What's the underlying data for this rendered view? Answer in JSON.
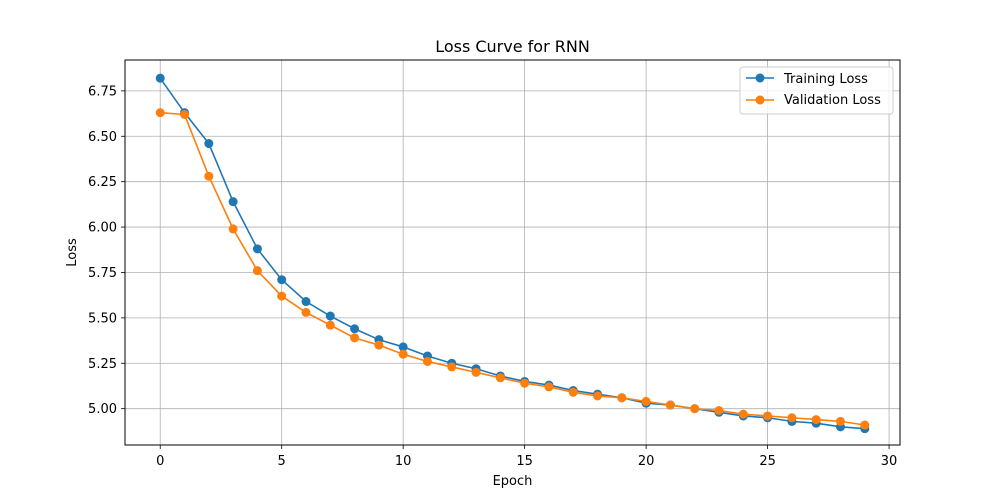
{
  "chart_data": {
    "type": "line",
    "title": "Loss Curve for RNN",
    "xlabel": "Epoch",
    "ylabel": "Loss",
    "xlim": [
      -1.45,
      30.45
    ],
    "ylim": [
      4.8,
      6.92
    ],
    "xticks": [
      0,
      5,
      10,
      15,
      20,
      25,
      30
    ],
    "yticks": [
      5.0,
      5.25,
      5.5,
      5.75,
      6.0,
      6.25,
      6.5,
      6.75
    ],
    "xtick_labels": [
      "0",
      "5",
      "10",
      "15",
      "20",
      "25",
      "30"
    ],
    "ytick_labels": [
      "5.00",
      "5.25",
      "5.50",
      "5.75",
      "6.00",
      "6.25",
      "6.50",
      "6.75"
    ],
    "grid": true,
    "legend_position": "top-right",
    "x": [
      0,
      1,
      2,
      3,
      4,
      5,
      6,
      7,
      8,
      9,
      10,
      11,
      12,
      13,
      14,
      15,
      16,
      17,
      18,
      19,
      20,
      21,
      22,
      23,
      24,
      25,
      26,
      27,
      28,
      29
    ],
    "series": [
      {
        "name": "Training Loss",
        "color": "#1f77b4",
        "marker": "circle",
        "values": [
          6.82,
          6.63,
          6.46,
          6.14,
          5.88,
          5.71,
          5.59,
          5.51,
          5.44,
          5.38,
          5.34,
          5.29,
          5.25,
          5.22,
          5.18,
          5.15,
          5.13,
          5.1,
          5.08,
          5.06,
          5.03,
          5.02,
          5.0,
          4.98,
          4.96,
          4.95,
          4.93,
          4.92,
          4.9,
          4.89
        ]
      },
      {
        "name": "Validation Loss",
        "color": "#ff7f0e",
        "marker": "circle",
        "values": [
          6.63,
          6.62,
          6.28,
          5.99,
          5.76,
          5.62,
          5.53,
          5.46,
          5.39,
          5.35,
          5.3,
          5.26,
          5.23,
          5.2,
          5.17,
          5.14,
          5.12,
          5.09,
          5.07,
          5.06,
          5.04,
          5.02,
          5.0,
          4.99,
          4.97,
          4.96,
          4.95,
          4.94,
          4.93,
          4.91
        ]
      }
    ]
  }
}
